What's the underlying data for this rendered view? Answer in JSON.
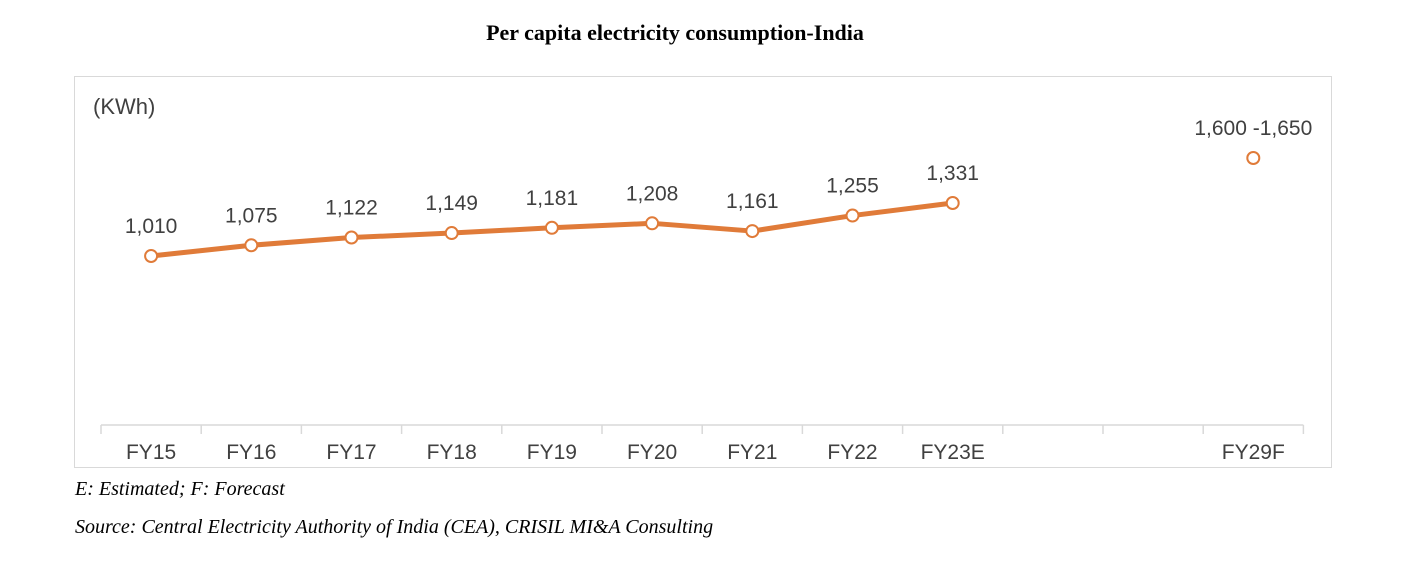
{
  "title": "Per capita electricity consumption-India",
  "unit_label": "(KWh)",
  "note": "E: Estimated; F: Forecast",
  "source": "Source: Central Electricity Authority of India (CEA), CRISIL MI&A Consulting",
  "colors": {
    "line": "#e07b39",
    "marker_fill": "#ffffff",
    "text": "#404040",
    "axis": "#d9d9d9"
  },
  "chart_data": {
    "type": "line",
    "title": "Per capita electricity consumption-India",
    "ylabel": "(KWh)",
    "categories": [
      "FY15",
      "FY16",
      "FY17",
      "FY18",
      "FY19",
      "FY20",
      "FY21",
      "FY22",
      "FY23E",
      "",
      "",
      "FY29F"
    ],
    "series": [
      {
        "values": [
          1010,
          1075,
          1122,
          1149,
          1181,
          1208,
          1161,
          1255,
          1331,
          null,
          null,
          null
        ],
        "labels": [
          "1,010",
          "1,075",
          "1,122",
          "1,149",
          "1,181",
          "1,208",
          "1,161",
          "1,255",
          "1,331",
          "",
          "",
          ""
        ]
      }
    ],
    "forecast": {
      "category": "FY29F",
      "value": 1625,
      "label": "1,600 -1,650"
    },
    "ylim": [
      0,
      2100
    ],
    "grid": false,
    "legend": "none"
  }
}
